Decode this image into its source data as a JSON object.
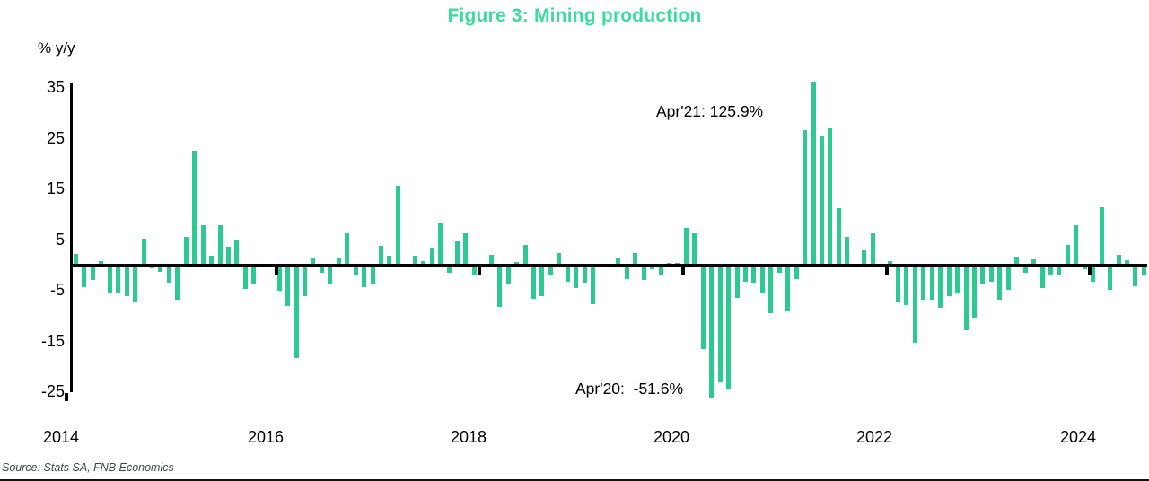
{
  "title": "Figure 3: Mining production",
  "colors": {
    "title": "#3edc9c",
    "bar": "#2dc992",
    "axis": "#000000",
    "source_text": "#3b4a49"
  },
  "axis_unit_label": "% y/y",
  "annotations": {
    "apr21": "Apr'21: 125.9%",
    "apr20": "Apr'20:  -51.6%"
  },
  "source": "Source: Stats SA, FNB Economics",
  "chart_data": {
    "type": "bar",
    "title": "Figure 3: Mining production",
    "ylabel": "% y/y",
    "ylim": [
      -25,
      35
    ],
    "yticks": [
      35,
      25,
      15,
      5,
      -5,
      -15,
      -25
    ],
    "xticks": [
      "2014",
      "2016",
      "2018",
      "2020",
      "2022",
      "2024"
    ],
    "grid": false,
    "legend": "none",
    "frequency": "monthly",
    "start": "2014-01",
    "end": "2024-07",
    "values": [
      2.3,
      -4.3,
      -2.8,
      0.8,
      -5.3,
      -5.3,
      -6.0,
      -7.0,
      5.3,
      -0.5,
      -1.2,
      -3.4,
      -6.7,
      5.6,
      22.6,
      7.9,
      1.9,
      7.9,
      3.8,
      4.9,
      -4.6,
      -3.5,
      0.4,
      0.3,
      -4.9,
      -7.9,
      -18.2,
      -6.1,
      1.4,
      -1.4,
      -3.5,
      1.6,
      6.4,
      -2.0,
      -4.2,
      -3.5,
      3.9,
      2.0,
      15.8,
      0.0,
      1.9,
      0.9,
      3.6,
      8.4,
      -1.5,
      4.8,
      6.4,
      -1.7,
      0.0,
      2.2,
      -8.2,
      -3.5,
      0.7,
      4.0,
      -6.6,
      -6.1,
      -1.8,
      2.5,
      -3.2,
      -4.5,
      -3.3,
      -7.6,
      0.4,
      0.3,
      1.5,
      -2.7,
      2.5,
      -2.9,
      -0.7,
      -1.7,
      0.5,
      0.6,
      7.5,
      6.4,
      -16.5,
      -51.6,
      -23.0,
      -24.4,
      -6.3,
      -3.2,
      -3.3,
      -5.4,
      -9.4,
      -1.5,
      -9.0,
      -2.7,
      26.8,
      125.9,
      25.7,
      27.0,
      11.3,
      5.6,
      0.0,
      3.0,
      6.4,
      0.0,
      0.9,
      -7.3,
      -7.7,
      -15.2,
      -6.7,
      -6.8,
      -8.3,
      -6.1,
      -5.3,
      -12.7,
      -10.2,
      -3.8,
      -3.2,
      -6.7,
      -4.7,
      1.8,
      -1.5,
      1.2,
      -4.4,
      -2.0,
      -1.8,
      4.1,
      7.9,
      -0.7,
      -3.1,
      11.5,
      -4.7,
      2.1,
      1.1,
      -4.1,
      -1.7
    ],
    "annotations": [
      {
        "x": "2021-04",
        "value": 125.9,
        "label": "Apr'21: 125.9%",
        "note": "bar truncated at top of axis"
      },
      {
        "x": "2020-04",
        "value": -51.6,
        "label": "Apr'20:  -51.6%",
        "note": "bar truncated at bottom of axis"
      }
    ]
  }
}
